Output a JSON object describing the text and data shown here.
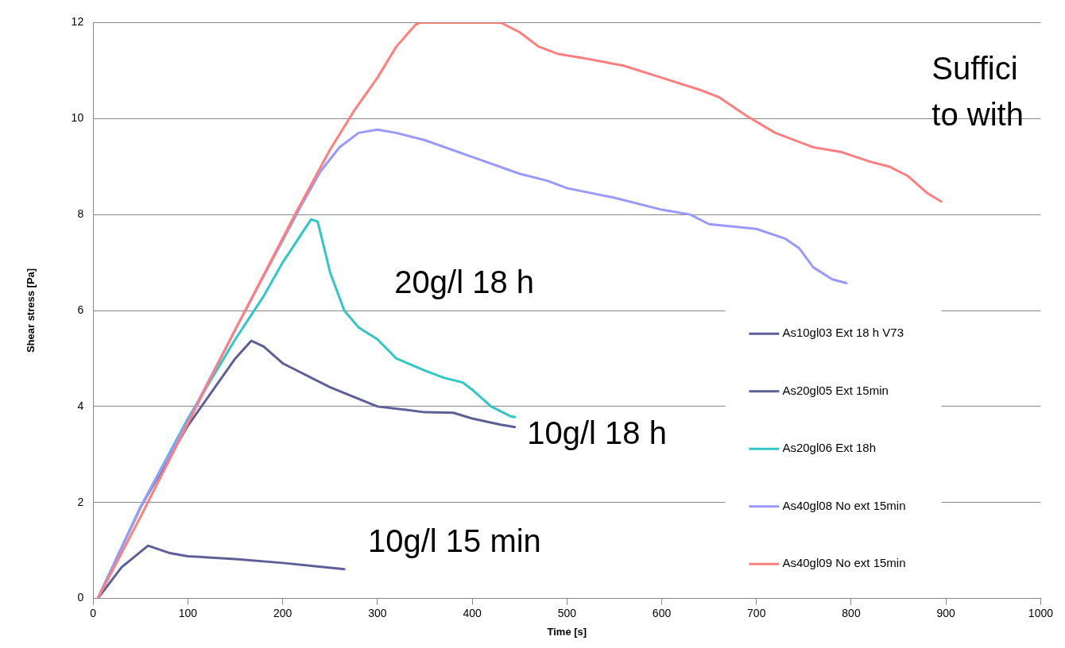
{
  "chart_data": {
    "type": "line",
    "xlabel": "Time [s]",
    "ylabel": "Shear stress [Pa]",
    "xlim": [
      0,
      1000
    ],
    "xticks": [
      0,
      100,
      200,
      300,
      400,
      500,
      600,
      700,
      800,
      900,
      1000
    ],
    "ylim": [
      0,
      12
    ],
    "yticks": [
      0,
      2,
      4,
      6,
      8,
      10,
      12
    ],
    "grid": "y",
    "legend": "right",
    "marker": "none",
    "line_style": "solid",
    "series": [
      {
        "name": "As10gl03 Ext 18 h V73",
        "color": "#5f5f97",
        "x": [
          5,
          50,
          100,
          150,
          167,
          180,
          200,
          250,
          300,
          330,
          350,
          380,
          400,
          430,
          445
        ],
        "values": [
          0,
          1.9,
          3.6,
          5.0,
          5.37,
          5.25,
          4.9,
          4.4,
          4.0,
          3.93,
          3.88,
          3.87,
          3.75,
          3.62,
          3.57
        ]
      },
      {
        "name": "As20gl05 Ext 15min",
        "color": "#5f5f97",
        "x": [
          5,
          30,
          58,
          80,
          100,
          150,
          200,
          230,
          265
        ],
        "values": [
          0,
          0.65,
          1.1,
          0.95,
          0.88,
          0.82,
          0.74,
          0.68,
          0.61
        ]
      },
      {
        "name": "As20gl06 Ext 18h",
        "color": "#33c6c6",
        "x": [
          5,
          50,
          100,
          150,
          180,
          200,
          220,
          230,
          237,
          250,
          265,
          280,
          300,
          320,
          350,
          370,
          390,
          400,
          420,
          440,
          445
        ],
        "values": [
          0,
          1.9,
          3.75,
          5.4,
          6.3,
          7.0,
          7.6,
          7.9,
          7.85,
          6.8,
          6.0,
          5.65,
          5.4,
          5.0,
          4.75,
          4.6,
          4.5,
          4.35,
          4.0,
          3.8,
          3.78
        ]
      },
      {
        "name": "As40gl08 No ext 15min",
        "color": "#9999ff",
        "x": [
          5,
          50,
          100,
          150,
          220,
          240,
          260,
          280,
          300,
          320,
          350,
          400,
          450,
          480,
          500,
          550,
          600,
          630,
          650,
          700,
          730,
          745,
          760,
          780,
          795
        ],
        "values": [
          0,
          1.9,
          3.7,
          5.6,
          8.2,
          8.9,
          9.4,
          9.7,
          9.77,
          9.7,
          9.55,
          9.2,
          8.85,
          8.7,
          8.55,
          8.35,
          8.1,
          8.0,
          7.8,
          7.7,
          7.5,
          7.3,
          6.9,
          6.65,
          6.57
        ]
      },
      {
        "name": "As40gl09 No ext 15min",
        "color": "#ff7f7f",
        "x": [
          5,
          50,
          100,
          150,
          213,
          250,
          275,
          300,
          320,
          340,
          345,
          430,
          450,
          470,
          490,
          520,
          560,
          600,
          640,
          660,
          690,
          720,
          760,
          790,
          820,
          840,
          860,
          880,
          895
        ],
        "values": [
          0,
          1.7,
          3.65,
          5.6,
          8.0,
          9.35,
          10.15,
          10.85,
          11.5,
          11.95,
          12,
          12,
          11.8,
          11.5,
          11.35,
          11.25,
          11.1,
          10.85,
          10.6,
          10.45,
          10.05,
          9.7,
          9.4,
          9.3,
          9.1,
          9.0,
          8.8,
          8.45,
          8.27
        ]
      }
    ],
    "annotations": [
      "20g/l 18 h",
      "10g/l 18 h",
      "10g/l 15 min",
      "Suffici",
      "to with"
    ]
  }
}
